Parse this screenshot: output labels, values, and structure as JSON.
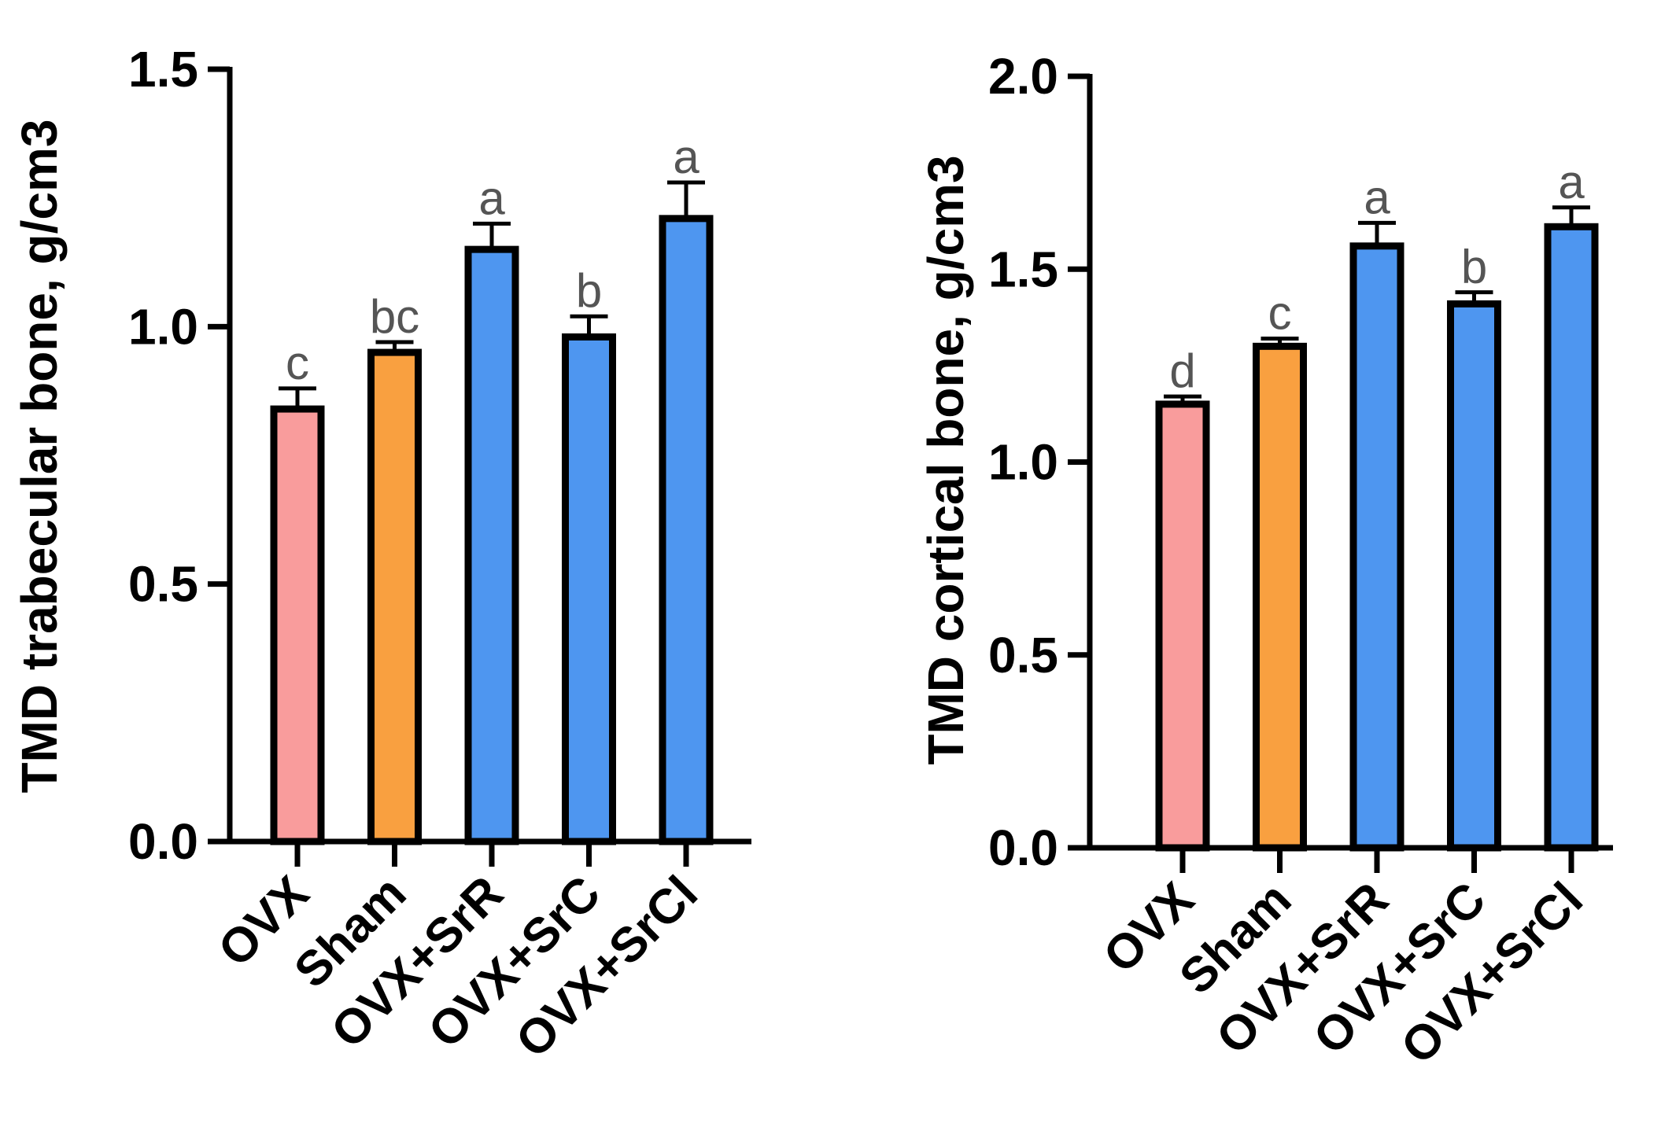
{
  "chart_data": [
    {
      "type": "bar",
      "title": "",
      "xlabel": "",
      "ylabel": "TMD trabecular bone, g/cm3",
      "ylim": [
        0,
        1.5
      ],
      "yticks": [
        0,
        0.5,
        1.0,
        1.5
      ],
      "ytick_labels": [
        "0.0",
        "0.5",
        "1.0",
        "1.5"
      ],
      "categories": [
        "OVX",
        "Sham",
        "OVX+SrR",
        "OVX+SrC",
        "OVX+SrCl"
      ],
      "values": [
        0.84,
        0.95,
        1.15,
        0.98,
        1.21
      ],
      "errors": [
        0.04,
        0.02,
        0.05,
        0.04,
        0.07
      ],
      "significance": [
        "c",
        "bc",
        "a",
        "b",
        "a"
      ],
      "colors": [
        "#F99C9C",
        "#F9A040",
        "#4E96F0",
        "#4E96F0",
        "#4E96F0"
      ]
    },
    {
      "type": "bar",
      "title": "",
      "xlabel": "",
      "ylabel": "TMD cortical bone, g/cm3",
      "ylim": [
        0,
        2.0
      ],
      "yticks": [
        0,
        0.5,
        1.0,
        1.5,
        2.0
      ],
      "ytick_labels": [
        "0.0",
        "0.5",
        "1.0",
        "1.5",
        "2.0"
      ],
      "categories": [
        "OVX",
        "Sham",
        "OVX+SrR",
        "OVX+SrC",
        "OVX+SrCl"
      ],
      "values": [
        1.15,
        1.3,
        1.56,
        1.41,
        1.61
      ],
      "errors": [
        0.02,
        0.02,
        0.06,
        0.03,
        0.05
      ],
      "significance": [
        "d",
        "c",
        "a",
        "b",
        "a"
      ],
      "colors": [
        "#F99C9C",
        "#F9A040",
        "#4E96F0",
        "#4E96F0",
        "#4E96F0"
      ]
    }
  ]
}
